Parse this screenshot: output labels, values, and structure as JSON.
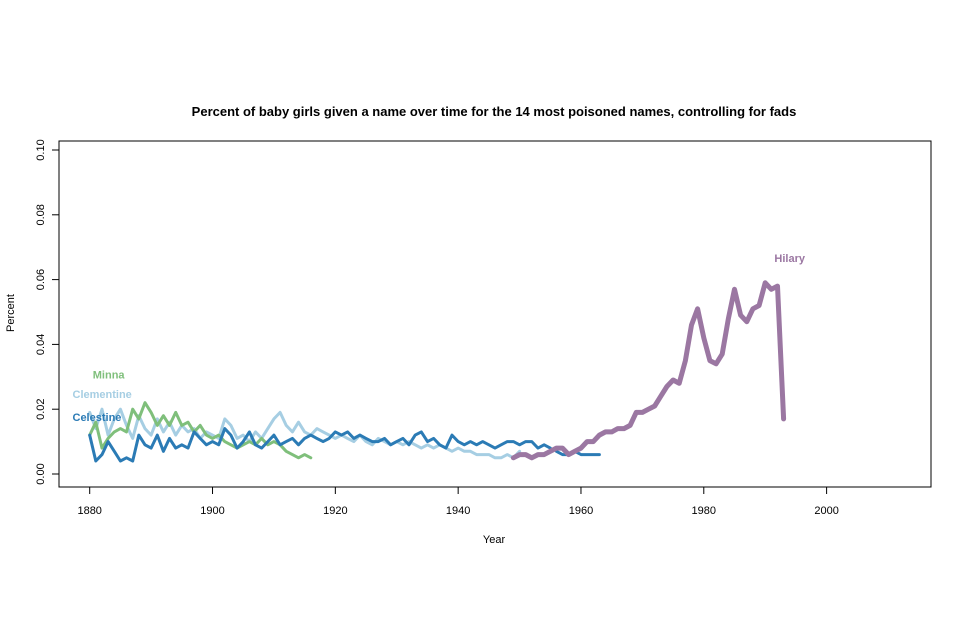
{
  "chart_data": {
    "type": "line",
    "title": "Percent of baby girls given a name over time for the 14 most poisoned names, controlling for fads",
    "xlabel": "Year",
    "ylabel": "Percent",
    "xlim": [
      1875,
      2017
    ],
    "ylim": [
      0,
      0.1
    ],
    "x_ticks": [
      "1880",
      "1900",
      "1920",
      "1940",
      "1960",
      "1980",
      "2000"
    ],
    "y_ticks": [
      "0.00",
      "0.02",
      "0.04",
      "0.06",
      "0.08",
      "0.10"
    ],
    "grid": false,
    "legend": "none",
    "series": [
      {
        "name": "Clementine",
        "color": "#a6cee3",
        "x": [
          1880,
          1881,
          1882,
          1883,
          1884,
          1885,
          1886,
          1887,
          1888,
          1889,
          1890,
          1891,
          1892,
          1893,
          1894,
          1895,
          1896,
          1897,
          1898,
          1899,
          1900,
          1901,
          1902,
          1903,
          1904,
          1905,
          1906,
          1907,
          1908,
          1909,
          1910,
          1911,
          1912,
          1913,
          1914,
          1915,
          1916,
          1917,
          1918,
          1919,
          1920,
          1921,
          1922,
          1923,
          1924,
          1925,
          1926,
          1927,
          1928,
          1929,
          1930,
          1931,
          1932,
          1933,
          1934,
          1935,
          1936,
          1937,
          1938,
          1939,
          1940,
          1941,
          1942,
          1943,
          1944,
          1945,
          1946,
          1947,
          1948,
          1949,
          1950
        ],
        "y": [
          0.019,
          0.014,
          0.02,
          0.012,
          0.017,
          0.02,
          0.015,
          0.011,
          0.018,
          0.014,
          0.012,
          0.017,
          0.013,
          0.016,
          0.012,
          0.015,
          0.013,
          0.014,
          0.011,
          0.013,
          0.012,
          0.011,
          0.017,
          0.015,
          0.011,
          0.012,
          0.01,
          0.013,
          0.011,
          0.014,
          0.017,
          0.019,
          0.015,
          0.013,
          0.016,
          0.013,
          0.012,
          0.014,
          0.013,
          0.012,
          0.011,
          0.012,
          0.011,
          0.01,
          0.012,
          0.01,
          0.009,
          0.011,
          0.01,
          0.009,
          0.01,
          0.009,
          0.01,
          0.009,
          0.008,
          0.009,
          0.008,
          0.009,
          0.008,
          0.007,
          0.008,
          0.007,
          0.007,
          0.006,
          0.006,
          0.006,
          0.005,
          0.005,
          0.006,
          0.005,
          0.007
        ]
      },
      {
        "name": "Minna",
        "color": "#7fbf7b",
        "x": [
          1880,
          1881,
          1882,
          1883,
          1884,
          1885,
          1886,
          1887,
          1888,
          1889,
          1890,
          1891,
          1892,
          1893,
          1894,
          1895,
          1896,
          1897,
          1898,
          1899,
          1900,
          1901,
          1902,
          1903,
          1904,
          1905,
          1906,
          1907,
          1908,
          1909,
          1910,
          1911,
          1912,
          1913,
          1914,
          1915,
          1916
        ],
        "y": [
          0.012,
          0.016,
          0.008,
          0.011,
          0.013,
          0.014,
          0.013,
          0.02,
          0.017,
          0.022,
          0.019,
          0.015,
          0.018,
          0.015,
          0.019,
          0.015,
          0.016,
          0.013,
          0.015,
          0.012,
          0.011,
          0.012,
          0.01,
          0.009,
          0.008,
          0.009,
          0.01,
          0.009,
          0.011,
          0.009,
          0.01,
          0.009,
          0.007,
          0.006,
          0.005,
          0.006,
          0.005
        ]
      },
      {
        "name": "Celestine",
        "color": "#2b7bb5",
        "x": [
          1880,
          1881,
          1882,
          1883,
          1884,
          1885,
          1886,
          1887,
          1888,
          1889,
          1890,
          1891,
          1892,
          1893,
          1894,
          1895,
          1896,
          1897,
          1898,
          1899,
          1900,
          1901,
          1902,
          1903,
          1904,
          1905,
          1906,
          1907,
          1908,
          1909,
          1910,
          1911,
          1912,
          1913,
          1914,
          1915,
          1916,
          1917,
          1918,
          1919,
          1920,
          1921,
          1922,
          1923,
          1924,
          1925,
          1926,
          1927,
          1928,
          1929,
          1930,
          1931,
          1932,
          1933,
          1934,
          1935,
          1936,
          1937,
          1938,
          1939,
          1940,
          1941,
          1942,
          1943,
          1944,
          1945,
          1946,
          1947,
          1948,
          1949,
          1950,
          1951,
          1952,
          1953,
          1954,
          1955
        ],
        "y": [
          0.012,
          0.004,
          0.006,
          0.01,
          0.007,
          0.004,
          0.005,
          0.004,
          0.012,
          0.009,
          0.008,
          0.012,
          0.007,
          0.011,
          0.008,
          0.009,
          0.008,
          0.013,
          0.011,
          0.009,
          0.01,
          0.009,
          0.014,
          0.012,
          0.008,
          0.01,
          0.013,
          0.009,
          0.008,
          0.01,
          0.012,
          0.009,
          0.01,
          0.011,
          0.009,
          0.011,
          0.012,
          0.011,
          0.01,
          0.011,
          0.013,
          0.012,
          0.013,
          0.011,
          0.012,
          0.011,
          0.01,
          0.01,
          0.011,
          0.009,
          0.01,
          0.011,
          0.009,
          0.012,
          0.013,
          0.01,
          0.011,
          0.009,
          0.008,
          0.012,
          0.01,
          0.009,
          0.01,
          0.009,
          0.01,
          0.009,
          0.008,
          0.009,
          0.01,
          0.01,
          0.009,
          0.01,
          0.01,
          0.008,
          0.009,
          0.008
        ]
      },
      {
        "name": "Celestine",
        "color": "#2b7bb5",
        "x": [
          1956,
          1957,
          1958,
          1959,
          1960,
          1961,
          1962,
          1963
        ],
        "y": [
          0.007,
          0.006,
          0.006,
          0.007,
          0.006,
          0.006,
          0.006,
          0.006
        ]
      },
      {
        "name": "Hilary",
        "color": "#9b77a2",
        "x": [
          1949,
          1950,
          1951,
          1952,
          1953,
          1954,
          1955,
          1956,
          1957,
          1958,
          1959,
          1960,
          1961,
          1962,
          1963,
          1964,
          1965,
          1966,
          1967,
          1968,
          1969,
          1970,
          1971,
          1972,
          1973,
          1974,
          1975,
          1976,
          1977,
          1978,
          1979,
          1980,
          1981,
          1982,
          1983,
          1984,
          1985,
          1986,
          1987,
          1988,
          1989,
          1990,
          1991,
          1992,
          1993
        ],
        "y": [
          0.005,
          0.006,
          0.006,
          0.005,
          0.006,
          0.006,
          0.007,
          0.008,
          0.008,
          0.006,
          0.007,
          0.008,
          0.01,
          0.01,
          0.012,
          0.013,
          0.013,
          0.014,
          0.014,
          0.015,
          0.019,
          0.019,
          0.02,
          0.021,
          0.024,
          0.027,
          0.029,
          0.028,
          0.035,
          0.046,
          0.051,
          0.042,
          0.035,
          0.034,
          0.037,
          0.048,
          0.057,
          0.049,
          0.047,
          0.051,
          0.052,
          0.059,
          0.057,
          0.058,
          0.017
        ]
      }
    ],
    "annotations": [
      {
        "text": "Minna",
        "x": 1880.5,
        "y": 0.0295,
        "color": "#7fbf7b"
      },
      {
        "text": "Clementine",
        "x": 1877.2,
        "y": 0.0235,
        "color": "#a6cee3"
      },
      {
        "text": "Celestine",
        "x": 1877.2,
        "y": 0.0164,
        "color": "#2b7bb5"
      },
      {
        "text": "Hilary",
        "x": 1991.5,
        "y": 0.0655,
        "color": "#9b77a2"
      }
    ]
  }
}
